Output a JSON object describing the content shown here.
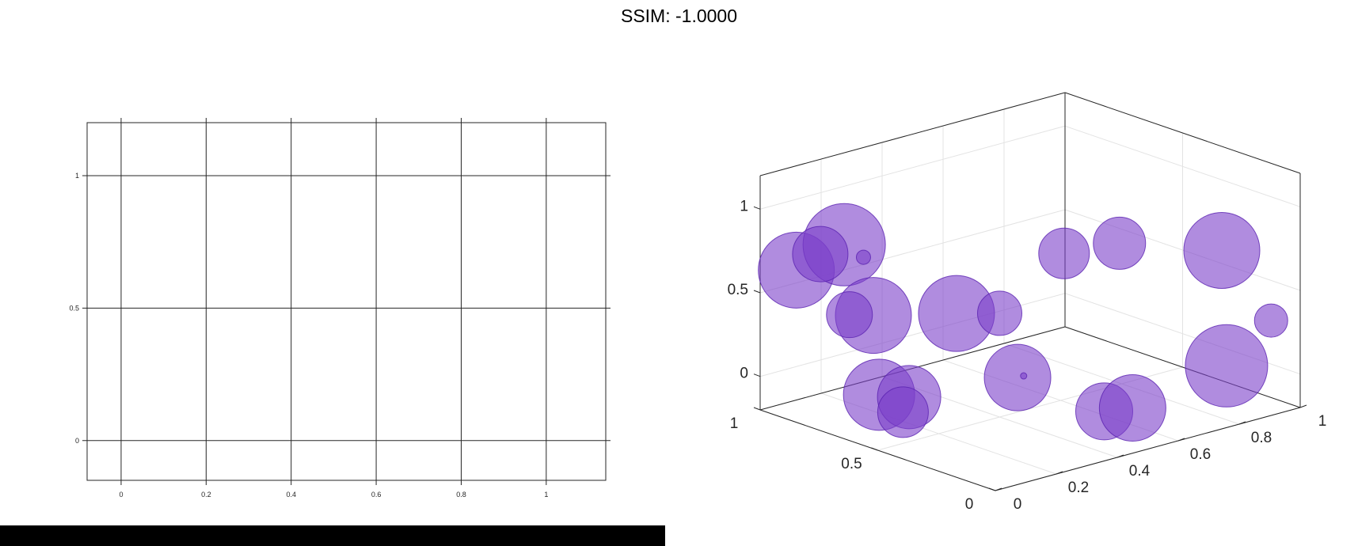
{
  "header": {
    "title": "SSIM: -1.0000"
  },
  "chart_data": [
    {
      "type": "scatter",
      "title": "",
      "xlabel": "",
      "ylabel": "",
      "xlim": [
        -0.08,
        1.14
      ],
      "ylim": [
        -0.15,
        1.2
      ],
      "xticks": [
        "0",
        "0.2",
        "0.4",
        "0.6",
        "0.8",
        "1"
      ],
      "yticks": [
        "0",
        "0.5",
        "1"
      ],
      "grid": true,
      "series": []
    },
    {
      "type": "scatter",
      "title": "",
      "xlabel": "",
      "ylabel": "",
      "zlabel": "",
      "xlim": [
        0,
        1
      ],
      "ylim": [
        0,
        1
      ],
      "zlim": [
        -0.2,
        1.2
      ],
      "xticks": [
        "0",
        "0.2",
        "0.4",
        "0.6",
        "0.8",
        "1"
      ],
      "yticks": [
        "0",
        "0.5",
        "1"
      ],
      "zticks": [
        "0",
        "0.5",
        "1"
      ],
      "grid": true,
      "marker_color": "#7b3fc9",
      "marker_alpha": 0.6,
      "points": [
        {
          "x": 0.08,
          "y": 0.95,
          "z": 0.62,
          "s": 48
        },
        {
          "x": 0.16,
          "y": 0.85,
          "z": 0.78,
          "s": 52
        },
        {
          "x": 0.12,
          "y": 0.9,
          "z": 0.72,
          "s": 35
        },
        {
          "x": 0.2,
          "y": 0.82,
          "z": 0.7,
          "s": 9
        },
        {
          "x": 0.14,
          "y": 0.7,
          "z": 0.44,
          "s": 48
        },
        {
          "x": 0.1,
          "y": 0.75,
          "z": 0.44,
          "s": 29
        },
        {
          "x": 0.32,
          "y": 0.58,
          "z": 0.42,
          "s": 48
        },
        {
          "x": 0.4,
          "y": 0.5,
          "z": 0.42,
          "s": 28
        },
        {
          "x": 0.48,
          "y": 0.33,
          "z": 0.82,
          "s": 32
        },
        {
          "x": 0.6,
          "y": 0.25,
          "z": 0.86,
          "s": 33
        },
        {
          "x": 0.12,
          "y": 0.65,
          "z": 0.0,
          "s": 45
        },
        {
          "x": 0.18,
          "y": 0.6,
          "z": -0.02,
          "s": 40
        },
        {
          "x": 0.16,
          "y": 0.6,
          "z": -0.1,
          "s": 32
        },
        {
          "x": 0.42,
          "y": 0.45,
          "z": 0.05,
          "s": 42
        },
        {
          "x": 0.44,
          "y": 0.45,
          "z": 0.05,
          "s": 4
        },
        {
          "x": 0.55,
          "y": 0.25,
          "z": -0.12,
          "s": 36
        },
        {
          "x": 0.62,
          "y": 0.22,
          "z": -0.12,
          "s": 42
        },
        {
          "x": 0.82,
          "y": 0.08,
          "z": 0.1,
          "s": 52
        },
        {
          "x": 0.92,
          "y": 0.02,
          "z": 0.35,
          "s": 21
        },
        {
          "x": 0.82,
          "y": 0.1,
          "z": 0.78,
          "s": 48
        }
      ]
    }
  ]
}
